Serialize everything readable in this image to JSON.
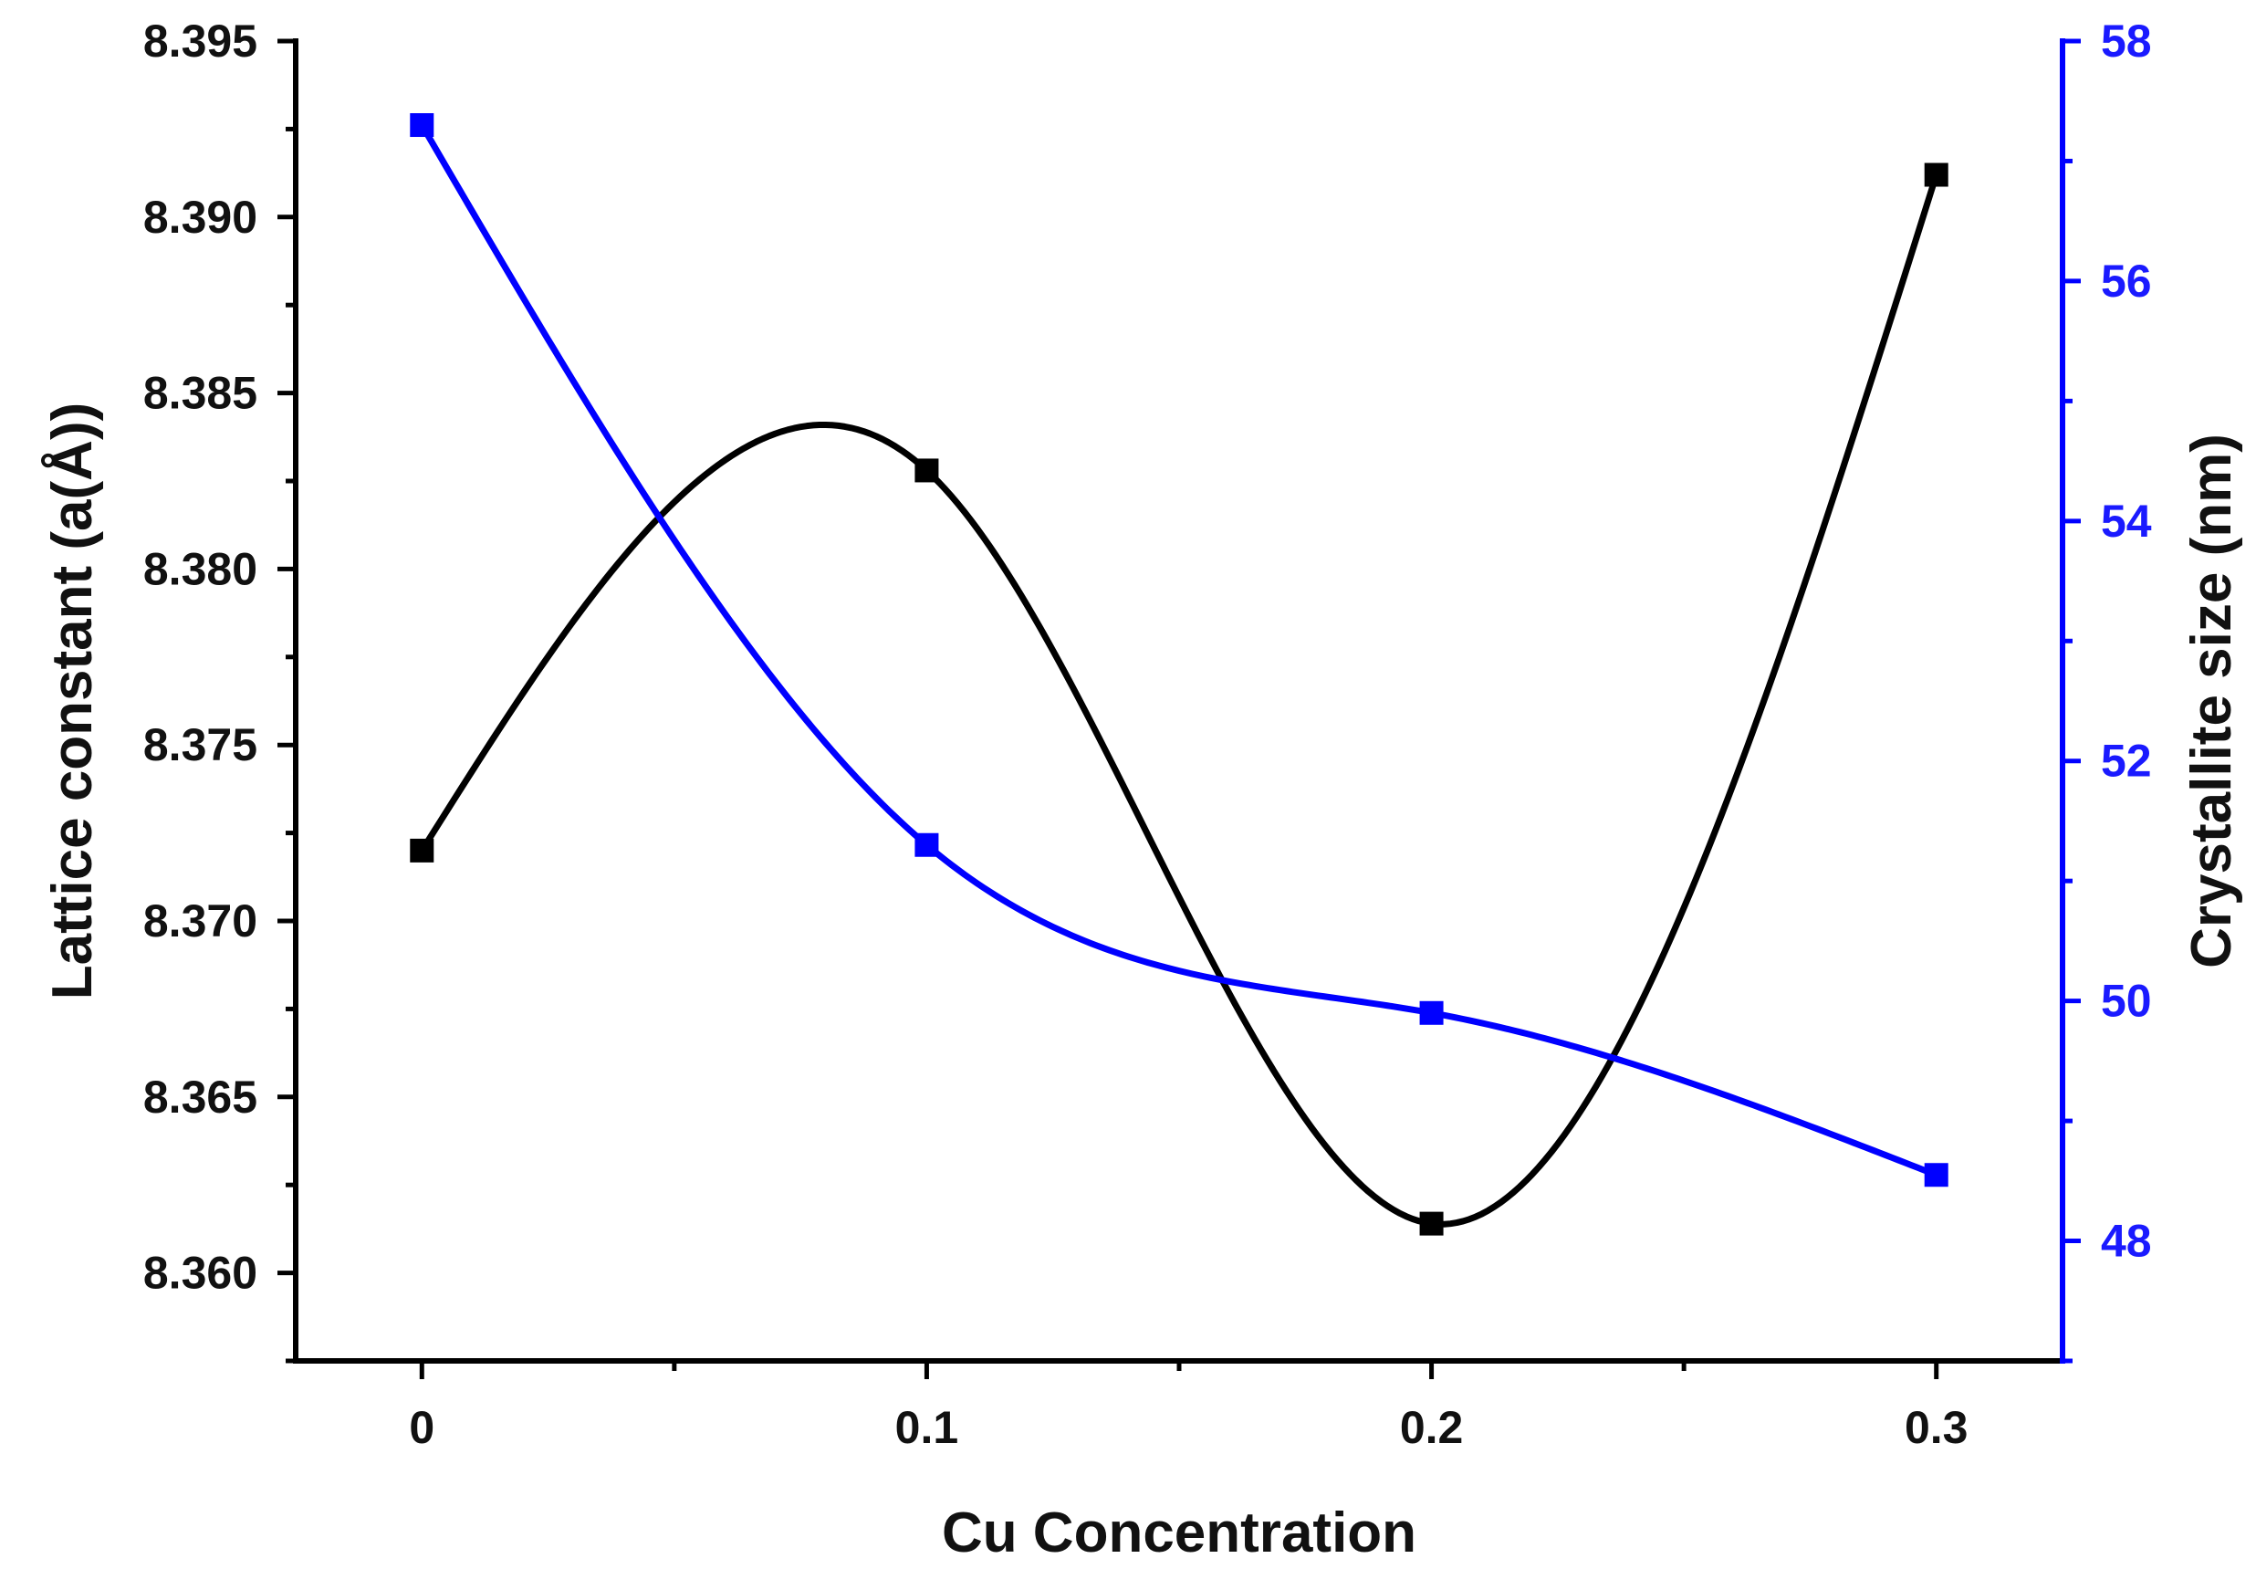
{
  "chart_data": {
    "type": "line",
    "xlabel": "Cu Concentration",
    "ylabel_left": "Lattice constant (a(Å))",
    "ylabel_right": "Crystallite size (nm)",
    "x": [
      0,
      0.1,
      0.2,
      0.3
    ],
    "xlim": [
      -0.025,
      0.325
    ],
    "ylim_left": [
      8.3575,
      8.395
    ],
    "ylim_right": [
      47,
      58
    ],
    "x_ticks": [
      {
        "value": 0,
        "label": "0"
      },
      {
        "value": 0.1,
        "label": "0.1"
      },
      {
        "value": 0.2,
        "label": "0.2"
      },
      {
        "value": 0.3,
        "label": "0.3"
      }
    ],
    "y_left_ticks": [
      {
        "value": 8.36,
        "label": "8.360"
      },
      {
        "value": 8.365,
        "label": "8.365"
      },
      {
        "value": 8.37,
        "label": "8.370"
      },
      {
        "value": 8.375,
        "label": "8.375"
      },
      {
        "value": 8.38,
        "label": "8.380"
      },
      {
        "value": 8.385,
        "label": "8.385"
      },
      {
        "value": 8.39,
        "label": "8.390"
      },
      {
        "value": 8.395,
        "label": "8.395"
      }
    ],
    "y_right_ticks": [
      {
        "value": 48,
        "label": "48"
      },
      {
        "value": 50,
        "label": "50"
      },
      {
        "value": 52,
        "label": "52"
      },
      {
        "value": 54,
        "label": "54"
      },
      {
        "value": 56,
        "label": "56"
      },
      {
        "value": 58,
        "label": "58"
      }
    ],
    "series": [
      {
        "axis": "left",
        "color": "#000000",
        "marker": "square",
        "smooth": true,
        "values": [
          8.372,
          8.3828,
          8.3614,
          8.3912
        ]
      },
      {
        "axis": "right",
        "color": "#0000ff",
        "marker": "square",
        "smooth": true,
        "values": [
          57.3,
          51.3,
          49.9,
          48.55
        ]
      }
    ],
    "grid": false,
    "legend": "none"
  }
}
